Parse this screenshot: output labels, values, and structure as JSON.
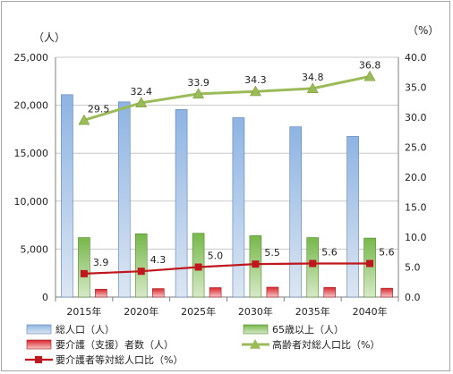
{
  "chart_data": {
    "type": "bar",
    "categories": [
      "2015年",
      "2020年",
      "2025年",
      "2030年",
      "2035年",
      "2040年"
    ],
    "y_left_unit": "（人）",
    "y_right_unit": "（%）",
    "y_left_ticks": [
      "0",
      "5,000",
      "10,000",
      "15,000",
      "20,000",
      "25,000"
    ],
    "y_right_ticks": [
      "0.0",
      "5.0",
      "10.0",
      "15.0",
      "20.0",
      "25.0",
      "30.0",
      "35.0",
      "40.0"
    ],
    "ylim_left": [
      0,
      25000
    ],
    "ylim_right": [
      0,
      40
    ],
    "grid": true,
    "legend_position": "bottom",
    "series": [
      {
        "name": "総人口（人）",
        "type": "bar",
        "axis": "left",
        "color": "#8eb4e3",
        "values": [
          21100,
          20350,
          19550,
          18700,
          17750,
          16750
        ]
      },
      {
        "name": "65歳以上（人）",
        "type": "bar",
        "axis": "left",
        "color": "#77b84a",
        "values": [
          6200,
          6600,
          6650,
          6400,
          6200,
          6150
        ]
      },
      {
        "name": "要介護（支援）者数（人）",
        "type": "bar",
        "axis": "left",
        "color": "#d9262b",
        "values": [
          820,
          880,
          980,
          1030,
          1010,
          920
        ]
      },
      {
        "name": "高齢者対総人口比（%）",
        "type": "line",
        "axis": "right",
        "color": "#9bbb59",
        "marker": "triangle",
        "values": [
          29.5,
          32.4,
          33.9,
          34.3,
          34.8,
          36.8
        ],
        "labels": [
          "29.5",
          "32.4",
          "33.9",
          "34.3",
          "34.8",
          "36.8"
        ]
      },
      {
        "name": "要介護者等対総人口比（%）",
        "type": "line",
        "axis": "right",
        "color": "#c0161e",
        "marker": "square",
        "values": [
          3.9,
          4.3,
          5.0,
          5.5,
          5.6,
          5.6
        ],
        "labels": [
          "3.9",
          "4.3",
          "5.0",
          "5.5",
          "5.6",
          "5.6"
        ]
      }
    ]
  }
}
